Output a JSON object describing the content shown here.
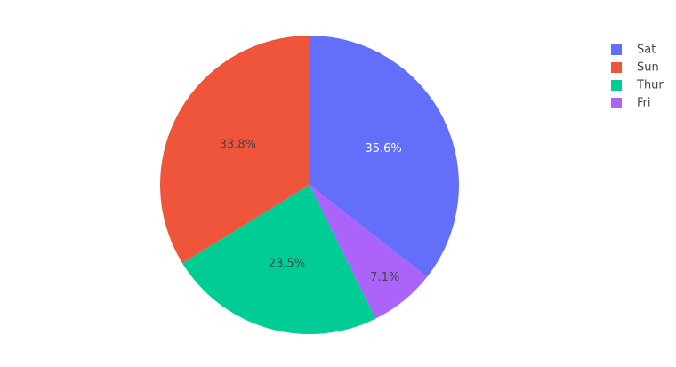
{
  "chart_data": {
    "type": "pie",
    "categories": [
      "Sat",
      "Sun",
      "Thur",
      "Fri"
    ],
    "values": [
      35.6,
      33.8,
      23.5,
      7.1
    ],
    "value_labels": [
      "35.6%",
      "33.8%",
      "23.5%",
      "7.1%"
    ],
    "colors": [
      "#636efa",
      "#ef553b",
      "#00cc96",
      "#ab63fa"
    ],
    "label_colors": [
      "#ffffff",
      "#444444",
      "#444444",
      "#444444"
    ],
    "legend": "top-right"
  }
}
